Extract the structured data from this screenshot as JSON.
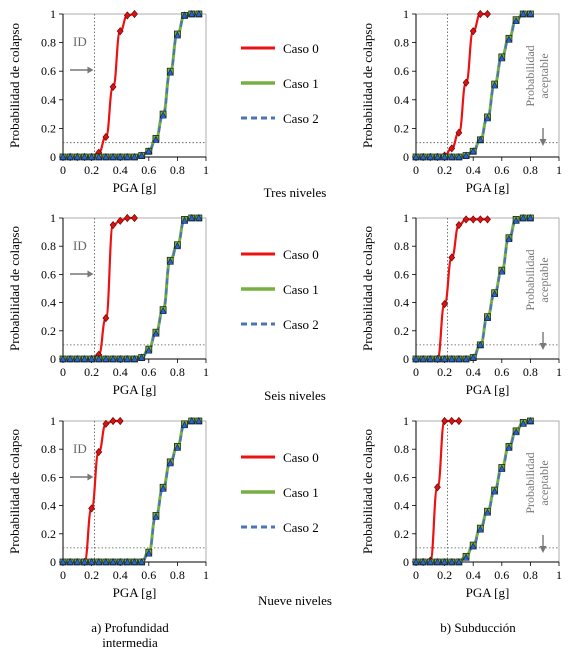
{
  "series_styles": [
    {
      "name": "Caso 0",
      "color": "#ee1111",
      "dash": "",
      "marker": "diamond",
      "marker_fill": "#dd1111"
    },
    {
      "name": "Caso 1",
      "color": "#77b040",
      "dash": "",
      "marker": "square",
      "marker_fill": "#77b040"
    },
    {
      "name": "Caso 2",
      "color": "#4a76b8",
      "dash": "6,4",
      "marker": "triangle",
      "marker_fill": "#2a62c8"
    }
  ],
  "legend": {
    "labels": [
      "Caso 0",
      "Caso 1",
      "Caso 2"
    ],
    "position": "center column"
  },
  "row_labels": [
    "Tres niveles",
    "Seis niveles",
    "Nueve niveles"
  ],
  "column_labels": [
    "a) Profundidad intermedia",
    "b) Subducción"
  ],
  "annotations": {
    "left": "ID",
    "right": "Probabilidad aceptable"
  },
  "chart_data": [
    {
      "type": "line",
      "id": "a1",
      "column": "a",
      "row": "Tres niveles",
      "xlabel": "PGA [g]",
      "ylabel": "Probabilidad de colapso",
      "xlim": [
        0,
        1
      ],
      "ylim": [
        0,
        1
      ],
      "xticks": [
        "0",
        "0.2",
        "0.4",
        "0.6",
        "0.8",
        "1"
      ],
      "yticks": [
        "0",
        "0.2",
        "0.4",
        "0.6",
        "0.8",
        "1"
      ],
      "grid": false,
      "reference_x": 0.22,
      "reference_y": 0.1,
      "series": [
        {
          "name": "Caso 0",
          "x": [
            0.05,
            0.1,
            0.15,
            0.2,
            0.25,
            0.3,
            0.35,
            0.4,
            0.45,
            0.5
          ],
          "y": [
            0,
            0,
            0,
            0,
            0.03,
            0.14,
            0.49,
            0.88,
            0.99,
            1.0
          ]
        },
        {
          "name": "Caso 1",
          "x": [
            0,
            0.05,
            0.1,
            0.15,
            0.2,
            0.25,
            0.3,
            0.35,
            0.4,
            0.45,
            0.5,
            0.55,
            0.6,
            0.65,
            0.7,
            0.75,
            0.8,
            0.85,
            0.9,
            0.95
          ],
          "y": [
            0,
            0,
            0,
            0,
            0,
            0,
            0,
            0,
            0,
            0,
            0,
            0.01,
            0.04,
            0.13,
            0.3,
            0.6,
            0.86,
            0.99,
            1.0,
            1.0
          ]
        },
        {
          "name": "Caso 2",
          "x": [
            0,
            0.05,
            0.1,
            0.15,
            0.2,
            0.25,
            0.3,
            0.35,
            0.4,
            0.45,
            0.5,
            0.55,
            0.6,
            0.65,
            0.7,
            0.75,
            0.8,
            0.85,
            0.9,
            0.95
          ],
          "y": [
            0,
            0,
            0,
            0,
            0,
            0,
            0,
            0,
            0,
            0,
            0,
            0.01,
            0.04,
            0.12,
            0.29,
            0.59,
            0.85,
            0.99,
            1.0,
            1.0
          ]
        }
      ]
    },
    {
      "type": "line",
      "id": "b1",
      "column": "b",
      "row": "Tres niveles",
      "xlabel": "PGA [g]",
      "ylabel": "Probabilidad de colapso",
      "xlim": [
        0,
        1
      ],
      "ylim": [
        0,
        1
      ],
      "xticks": [
        "0",
        "0.2",
        "0.4",
        "0.6",
        "0.8",
        "1"
      ],
      "yticks": [
        "0",
        "0.2",
        "0.4",
        "0.6",
        "0.8",
        "1"
      ],
      "grid": false,
      "reference_x": 0.22,
      "reference_y": 0.1,
      "series": [
        {
          "name": "Caso 0",
          "x": [
            0,
            0.05,
            0.1,
            0.15,
            0.2,
            0.25,
            0.3,
            0.35,
            0.4,
            0.45,
            0.5
          ],
          "y": [
            0,
            0,
            0,
            0,
            0.01,
            0.06,
            0.17,
            0.52,
            0.88,
            1.0,
            1.0
          ]
        },
        {
          "name": "Caso 1",
          "x": [
            0,
            0.05,
            0.1,
            0.15,
            0.2,
            0.25,
            0.3,
            0.35,
            0.4,
            0.45,
            0.5,
            0.55,
            0.6,
            0.65,
            0.7,
            0.75,
            0.8
          ],
          "y": [
            0,
            0,
            0,
            0,
            0,
            0,
            0,
            0.01,
            0.04,
            0.12,
            0.28,
            0.51,
            0.7,
            0.83,
            0.96,
            1.0,
            1.0
          ]
        },
        {
          "name": "Caso 2",
          "x": [
            0,
            0.05,
            0.1,
            0.15,
            0.2,
            0.25,
            0.3,
            0.35,
            0.4,
            0.45,
            0.5,
            0.55,
            0.6,
            0.65,
            0.7,
            0.75,
            0.8
          ],
          "y": [
            0,
            0,
            0,
            0,
            0,
            0,
            0,
            0.01,
            0.04,
            0.12,
            0.27,
            0.5,
            0.69,
            0.82,
            0.95,
            1.0,
            1.0
          ]
        }
      ]
    },
    {
      "type": "line",
      "id": "a2",
      "column": "a",
      "row": "Seis niveles",
      "xlabel": "PGA [g]",
      "ylabel": "Probabilidad de colapso",
      "xlim": [
        0,
        1
      ],
      "ylim": [
        0,
        1
      ],
      "xticks": [
        "0",
        "0.2",
        "0.4",
        "0.6",
        "0.8",
        "1"
      ],
      "yticks": [
        "0",
        "0.2",
        "0.4",
        "0.6",
        "0.8",
        "1"
      ],
      "grid": false,
      "reference_x": 0.22,
      "reference_y": 0.1,
      "series": [
        {
          "name": "Caso 0",
          "x": [
            0.2,
            0.25,
            0.3,
            0.35,
            0.4,
            0.45,
            0.5
          ],
          "y": [
            0,
            0.03,
            0.29,
            0.95,
            0.98,
            1.0,
            1.0
          ]
        },
        {
          "name": "Caso 1",
          "x": [
            0,
            0.05,
            0.1,
            0.15,
            0.2,
            0.25,
            0.3,
            0.35,
            0.4,
            0.45,
            0.5,
            0.55,
            0.6,
            0.65,
            0.7,
            0.75,
            0.8,
            0.85,
            0.9,
            0.95
          ],
          "y": [
            0,
            0,
            0,
            0,
            0,
            0,
            0,
            0,
            0,
            0,
            0,
            0.01,
            0.07,
            0.19,
            0.35,
            0.7,
            0.81,
            0.99,
            1.0,
            1.0
          ]
        },
        {
          "name": "Caso 2",
          "x": [
            0,
            0.05,
            0.1,
            0.15,
            0.2,
            0.25,
            0.3,
            0.35,
            0.4,
            0.45,
            0.5,
            0.55,
            0.6,
            0.65,
            0.7,
            0.75,
            0.8,
            0.85,
            0.9,
            0.95
          ],
          "y": [
            0,
            0,
            0,
            0,
            0,
            0,
            0,
            0,
            0,
            0,
            0,
            0.01,
            0.06,
            0.18,
            0.34,
            0.69,
            0.8,
            0.98,
            1.0,
            1.0
          ]
        }
      ]
    },
    {
      "type": "line",
      "id": "b2",
      "column": "b",
      "row": "Seis niveles",
      "xlabel": "PGA [g]",
      "ylabel": "Probabilidad de colapso",
      "xlim": [
        0,
        1
      ],
      "ylim": [
        0,
        1
      ],
      "xticks": [
        "0",
        "0.2",
        "0.4",
        "0.6",
        "0.8",
        "1"
      ],
      "yticks": [
        "0",
        "0.2",
        "0.4",
        "0.6",
        "0.8",
        "1"
      ],
      "grid": false,
      "reference_x": 0.22,
      "reference_y": 0.1,
      "series": [
        {
          "name": "Caso 0",
          "x": [
            0.15,
            0.2,
            0.25,
            0.3,
            0.35,
            0.4,
            0.45,
            0.5
          ],
          "y": [
            0,
            0.39,
            0.72,
            0.95,
            0.99,
            0.99,
            0.99,
            0.99
          ]
        },
        {
          "name": "Caso 1",
          "x": [
            0,
            0.05,
            0.1,
            0.15,
            0.2,
            0.25,
            0.3,
            0.35,
            0.4,
            0.45,
            0.5,
            0.55,
            0.6,
            0.65,
            0.7,
            0.75,
            0.8
          ],
          "y": [
            0,
            0,
            0,
            0,
            0,
            0,
            0,
            0,
            0.01,
            0.1,
            0.3,
            0.47,
            0.63,
            0.86,
            0.99,
            1.0,
            1.0
          ]
        },
        {
          "name": "Caso 2",
          "x": [
            0,
            0.05,
            0.1,
            0.15,
            0.2,
            0.25,
            0.3,
            0.35,
            0.4,
            0.45,
            0.5,
            0.55,
            0.6,
            0.65,
            0.7,
            0.75,
            0.8
          ],
          "y": [
            0,
            0,
            0,
            0,
            0,
            0,
            0,
            0,
            0.01,
            0.1,
            0.29,
            0.46,
            0.62,
            0.85,
            0.98,
            1.0,
            1.0
          ]
        }
      ]
    },
    {
      "type": "line",
      "id": "a3",
      "column": "a",
      "row": "Nueve niveles",
      "xlabel": "PGA [g]",
      "ylabel": "Probabilidad de colapso",
      "xlim": [
        0,
        1
      ],
      "ylim": [
        0,
        1
      ],
      "xticks": [
        "0",
        "0.2",
        "0.4",
        "0.6",
        "0.8",
        "1"
      ],
      "yticks": [
        "0",
        "0.2",
        "0.4",
        "0.6",
        "0.8",
        "1"
      ],
      "grid": false,
      "reference_x": 0.22,
      "reference_y": 0.1,
      "series": [
        {
          "name": "Caso 0",
          "x": [
            0.15,
            0.2,
            0.25,
            0.3,
            0.35,
            0.4
          ],
          "y": [
            0,
            0.38,
            0.78,
            0.98,
            1.0,
            1.0
          ]
        },
        {
          "name": "Caso 1",
          "x": [
            0,
            0.05,
            0.1,
            0.15,
            0.2,
            0.25,
            0.3,
            0.35,
            0.4,
            0.45,
            0.5,
            0.55,
            0.6,
            0.65,
            0.7,
            0.75,
            0.8,
            0.85,
            0.9,
            0.95
          ],
          "y": [
            0,
            0,
            0,
            0,
            0,
            0,
            0,
            0,
            0,
            0,
            0,
            0,
            0.07,
            0.33,
            0.53,
            0.71,
            0.82,
            0.98,
            1.0,
            1.0
          ]
        },
        {
          "name": "Caso 2",
          "x": [
            0,
            0.05,
            0.1,
            0.15,
            0.2,
            0.25,
            0.3,
            0.35,
            0.4,
            0.45,
            0.5,
            0.55,
            0.6,
            0.65,
            0.7,
            0.75,
            0.8,
            0.85,
            0.9,
            0.95
          ],
          "y": [
            0,
            0,
            0,
            0,
            0,
            0,
            0,
            0,
            0,
            0,
            0,
            0,
            0.06,
            0.32,
            0.52,
            0.7,
            0.81,
            0.97,
            1.0,
            1.0
          ]
        }
      ]
    },
    {
      "type": "line",
      "id": "b3",
      "column": "b",
      "row": "Nueve niveles",
      "xlabel": "PGA [g]",
      "ylabel": "Probabilidad de colapso",
      "xlim": [
        0,
        1
      ],
      "ylim": [
        0,
        1
      ],
      "xticks": [
        "0",
        "0.2",
        "0.4",
        "0.6",
        "0.8",
        "1"
      ],
      "yticks": [
        "0",
        "0.2",
        "0.4",
        "0.6",
        "0.8",
        "1"
      ],
      "grid": false,
      "reference_x": 0.22,
      "reference_y": 0.1,
      "series": [
        {
          "name": "Caso 0",
          "x": [
            0,
            0.05,
            0.1,
            0.15,
            0.2,
            0.25,
            0.3
          ],
          "y": [
            0,
            0,
            0.01,
            0.53,
            1.0,
            1.0,
            1.0
          ]
        },
        {
          "name": "Caso 1",
          "x": [
            0,
            0.05,
            0.1,
            0.15,
            0.2,
            0.25,
            0.3,
            0.35,
            0.4,
            0.45,
            0.5,
            0.55,
            0.6,
            0.65,
            0.7,
            0.75,
            0.8
          ],
          "y": [
            0,
            0,
            0,
            0,
            0,
            0,
            0,
            0.04,
            0.12,
            0.24,
            0.36,
            0.51,
            0.67,
            0.82,
            0.93,
            0.99,
            1.0
          ]
        },
        {
          "name": "Caso 2",
          "x": [
            0,
            0.05,
            0.1,
            0.15,
            0.2,
            0.25,
            0.3,
            0.35,
            0.4,
            0.45,
            0.5,
            0.55,
            0.6,
            0.65,
            0.7,
            0.75,
            0.8
          ],
          "y": [
            0,
            0,
            0,
            0,
            0,
            0,
            0,
            0.03,
            0.11,
            0.23,
            0.35,
            0.5,
            0.66,
            0.81,
            0.92,
            0.98,
            1.0
          ]
        }
      ]
    }
  ]
}
